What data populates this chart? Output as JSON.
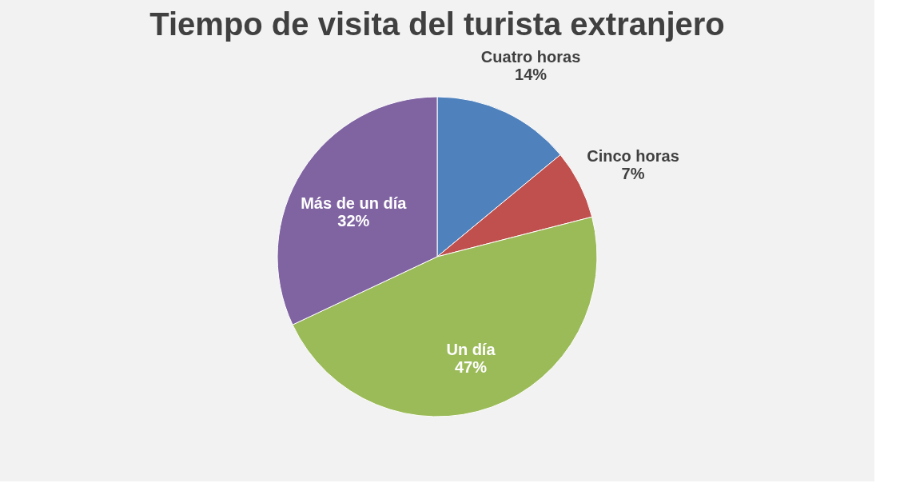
{
  "chart_data": {
    "type": "pie",
    "title": "Tiempo de visita del turista extranjero",
    "categories": [
      "Cuatro horas",
      "Cinco horas",
      "Un día",
      "Más de un día"
    ],
    "values": [
      14,
      7,
      47,
      32
    ],
    "colors": [
      "#4f81bd",
      "#c0504d",
      "#9bbb59",
      "#8064a2"
    ],
    "value_labels": [
      "14%",
      "7%",
      "47%",
      "32%"
    ],
    "legend": false
  }
}
